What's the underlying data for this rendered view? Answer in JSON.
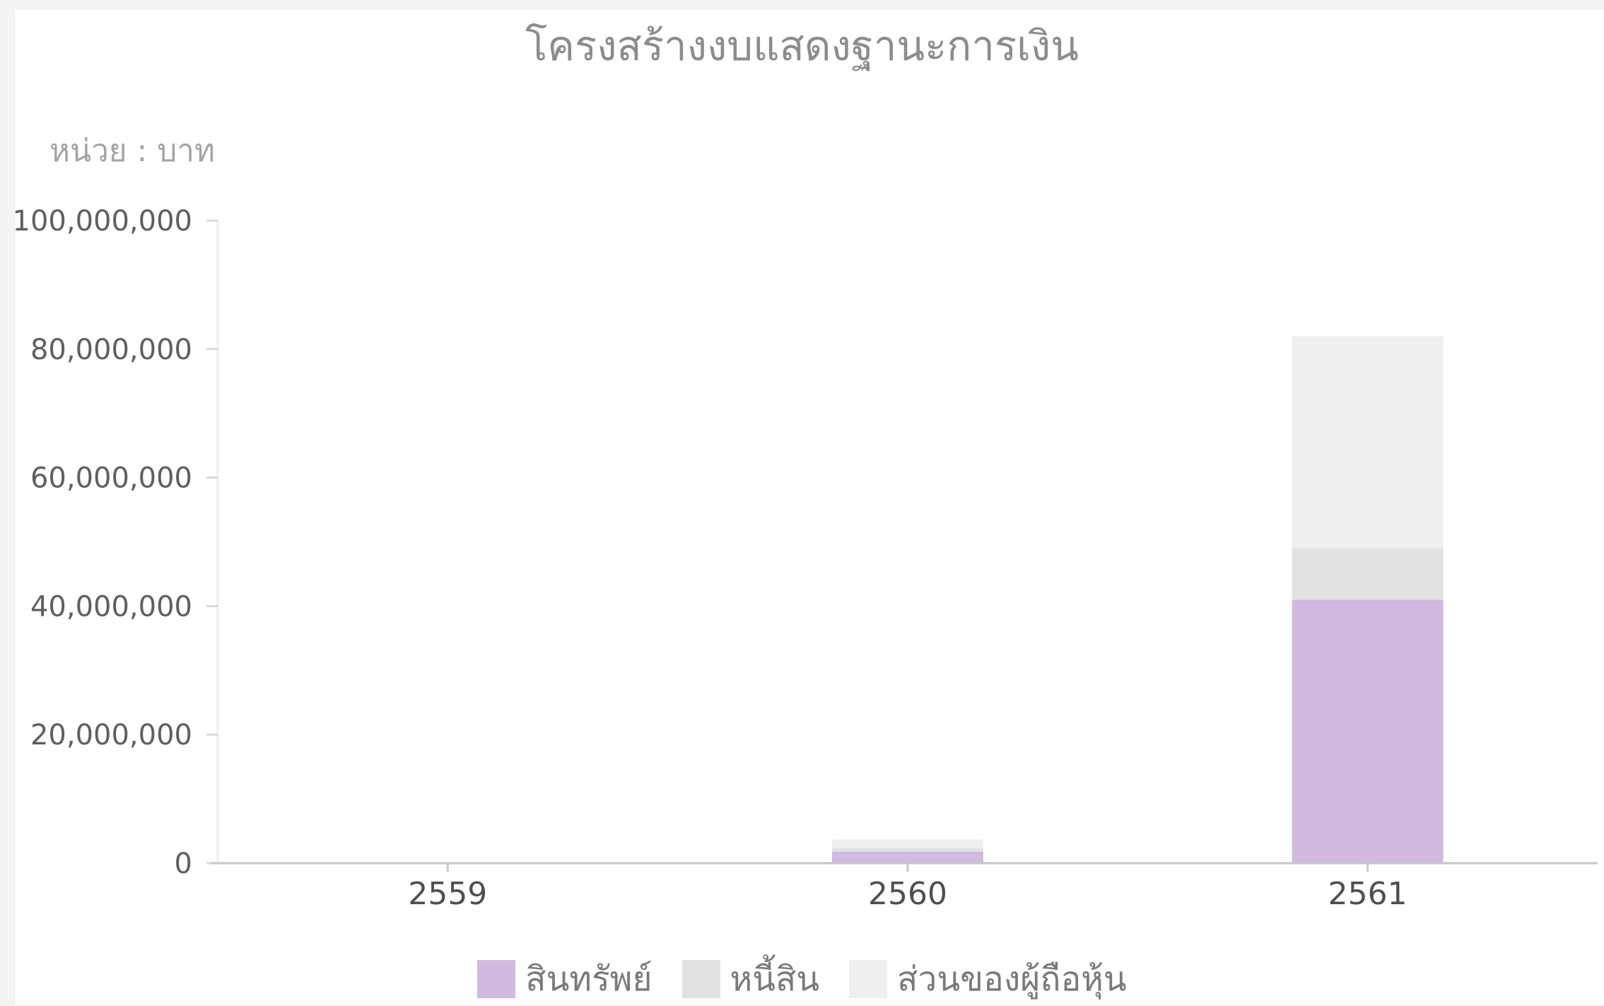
{
  "chart_data": {
    "type": "bar",
    "stacked": true,
    "title": "โครงสร้างงบแสดงฐานะการเงิน",
    "unit_label": "หน่วย : บาท",
    "categories": [
      "2559",
      "2560",
      "2561"
    ],
    "series": [
      {
        "name": "สินทรัพย์",
        "color": "#d1b9df",
        "values": [
          0,
          1800000,
          41000000
        ]
      },
      {
        "name": "หนี้สิน",
        "color": "#e1e1e1",
        "values": [
          0,
          600000,
          8000000
        ]
      },
      {
        "name": "ส่วนของผู้ถือหุ้น",
        "color": "#efefef",
        "values": [
          0,
          1300000,
          33000000
        ]
      }
    ],
    "ylim": [
      0,
      100000000
    ],
    "yticks": [
      "0",
      "20,000,000",
      "40,000,000",
      "60,000,000",
      "80,000,000",
      "100,000,000"
    ],
    "ytick_values": [
      0,
      20000000,
      40000000,
      60000000,
      80000000,
      100000000
    ],
    "grid": false,
    "legend_position": "bottom"
  }
}
